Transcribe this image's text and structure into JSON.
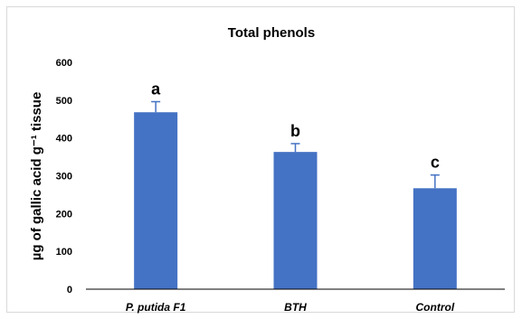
{
  "chart_data": {
    "type": "bar",
    "title": "Total phenols",
    "ylabel": "µg of gallic acid g⁻¹ tissue",
    "xlabel": "",
    "categories": [
      "P. putida F1",
      "BTH",
      "Control"
    ],
    "values": [
      468,
      363,
      267
    ],
    "errors": [
      28,
      22,
      35
    ],
    "significance": [
      "a",
      "b",
      "c"
    ],
    "ylim": [
      0,
      600
    ],
    "yticks": [
      0,
      100,
      200,
      300,
      400,
      500,
      600
    ],
    "grid": false,
    "legend": "none",
    "colors": {
      "bar": "#4472c4",
      "error_bar": "#4472c4",
      "axis": "#000000"
    }
  }
}
